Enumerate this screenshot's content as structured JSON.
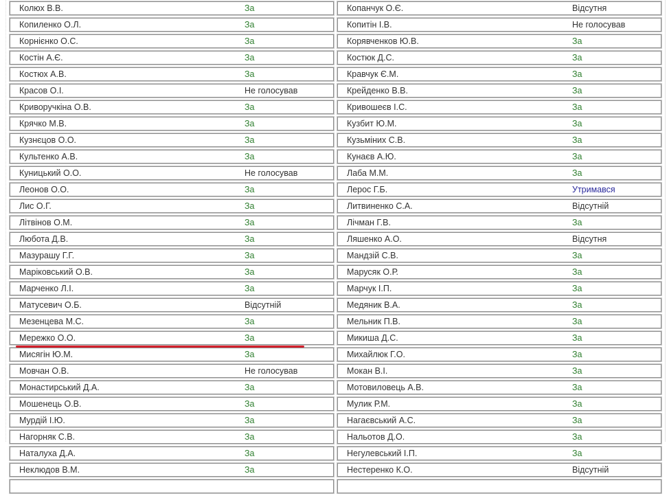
{
  "colors": {
    "for": "#2f7f2f",
    "abstain": "#2a2a9c",
    "other": "#333333",
    "highlight": "#d3202c"
  },
  "left": [
    {
      "name": "Колюх В.В.",
      "vote": "За"
    },
    {
      "name": "Копиленко О.Л.",
      "vote": "За"
    },
    {
      "name": "Корнієнко О.С.",
      "vote": "За"
    },
    {
      "name": "Костін А.Є.",
      "vote": "За"
    },
    {
      "name": "Костюх А.В.",
      "vote": "За"
    },
    {
      "name": "Красов О.І.",
      "vote": "Не голосував"
    },
    {
      "name": "Криворучкіна О.В.",
      "vote": "За"
    },
    {
      "name": "Крячко М.В.",
      "vote": "За"
    },
    {
      "name": "Кузнєцов О.О.",
      "vote": "За"
    },
    {
      "name": "Культенко А.В.",
      "vote": "За"
    },
    {
      "name": "Куницький О.О.",
      "vote": "Не голосував"
    },
    {
      "name": "Леонов О.О.",
      "vote": "За"
    },
    {
      "name": "Лис О.Г.",
      "vote": "За"
    },
    {
      "name": "Літвінов О.М.",
      "vote": "За"
    },
    {
      "name": "Любота Д.В.",
      "vote": "За"
    },
    {
      "name": "Мазурашу Г.Г.",
      "vote": "За"
    },
    {
      "name": "Маріковський О.В.",
      "vote": "За"
    },
    {
      "name": "Марченко Л.І.",
      "vote": "За"
    },
    {
      "name": "Матусевич О.Б.",
      "vote": "Відсутній"
    },
    {
      "name": "Мезенцева М.С.",
      "vote": "За"
    },
    {
      "name": "Мережко О.О.",
      "vote": "За"
    },
    {
      "name": "Мисягін Ю.М.",
      "vote": "За"
    },
    {
      "name": "Мовчан О.В.",
      "vote": "Не голосував",
      "highlighted": true
    },
    {
      "name": "Монастирський Д.А.",
      "vote": "За"
    },
    {
      "name": "Мошенець О.В.",
      "vote": "За"
    },
    {
      "name": "Мурдій І.Ю.",
      "vote": "За"
    },
    {
      "name": "Нагорняк С.В.",
      "vote": "За"
    },
    {
      "name": "Наталуха Д.А.",
      "vote": "За"
    },
    {
      "name": "Неклюдов В.М.",
      "vote": "За"
    }
  ],
  "right": [
    {
      "name": "Копанчук О.Є.",
      "vote": "Відсутня"
    },
    {
      "name": "Копитін І.В.",
      "vote": "Не голосував"
    },
    {
      "name": "Корявченков Ю.В.",
      "vote": "За"
    },
    {
      "name": "Костюк Д.С.",
      "vote": "За"
    },
    {
      "name": "Кравчук Є.М.",
      "vote": "За"
    },
    {
      "name": "Крейденко В.В.",
      "vote": "За"
    },
    {
      "name": "Кривошеєв І.С.",
      "vote": "За"
    },
    {
      "name": "Кузбит Ю.М.",
      "vote": "За"
    },
    {
      "name": "Кузьміних С.В.",
      "vote": "За"
    },
    {
      "name": "Кунаєв А.Ю.",
      "vote": "За"
    },
    {
      "name": "Лаба М.М.",
      "vote": "За"
    },
    {
      "name": "Лерос Г.Б.",
      "vote": "Утримався"
    },
    {
      "name": "Литвиненко С.А.",
      "vote": "Відсутній"
    },
    {
      "name": "Лічман Г.В.",
      "vote": "За"
    },
    {
      "name": "Ляшенко А.О.",
      "vote": "Відсутня"
    },
    {
      "name": "Мандзій С.В.",
      "vote": "За"
    },
    {
      "name": "Марусяк О.Р.",
      "vote": "За"
    },
    {
      "name": "Марчук І.П.",
      "vote": "За"
    },
    {
      "name": "Медяник В.А.",
      "vote": "За"
    },
    {
      "name": "Мельник П.В.",
      "vote": "За"
    },
    {
      "name": "Микиша Д.С.",
      "vote": "За"
    },
    {
      "name": "Михайлюк Г.О.",
      "vote": "За"
    },
    {
      "name": "Мокан В.І.",
      "vote": "За"
    },
    {
      "name": "Мотовиловець А.В.",
      "vote": "За"
    },
    {
      "name": "Мулик Р.М.",
      "vote": "За"
    },
    {
      "name": "Нагаєвський А.С.",
      "vote": "За"
    },
    {
      "name": "Нальотов Д.О.",
      "vote": "За"
    },
    {
      "name": "Негулевський І.П.",
      "vote": "За"
    },
    {
      "name": "Нестеренко К.О.",
      "vote": "Відсутній"
    }
  ]
}
